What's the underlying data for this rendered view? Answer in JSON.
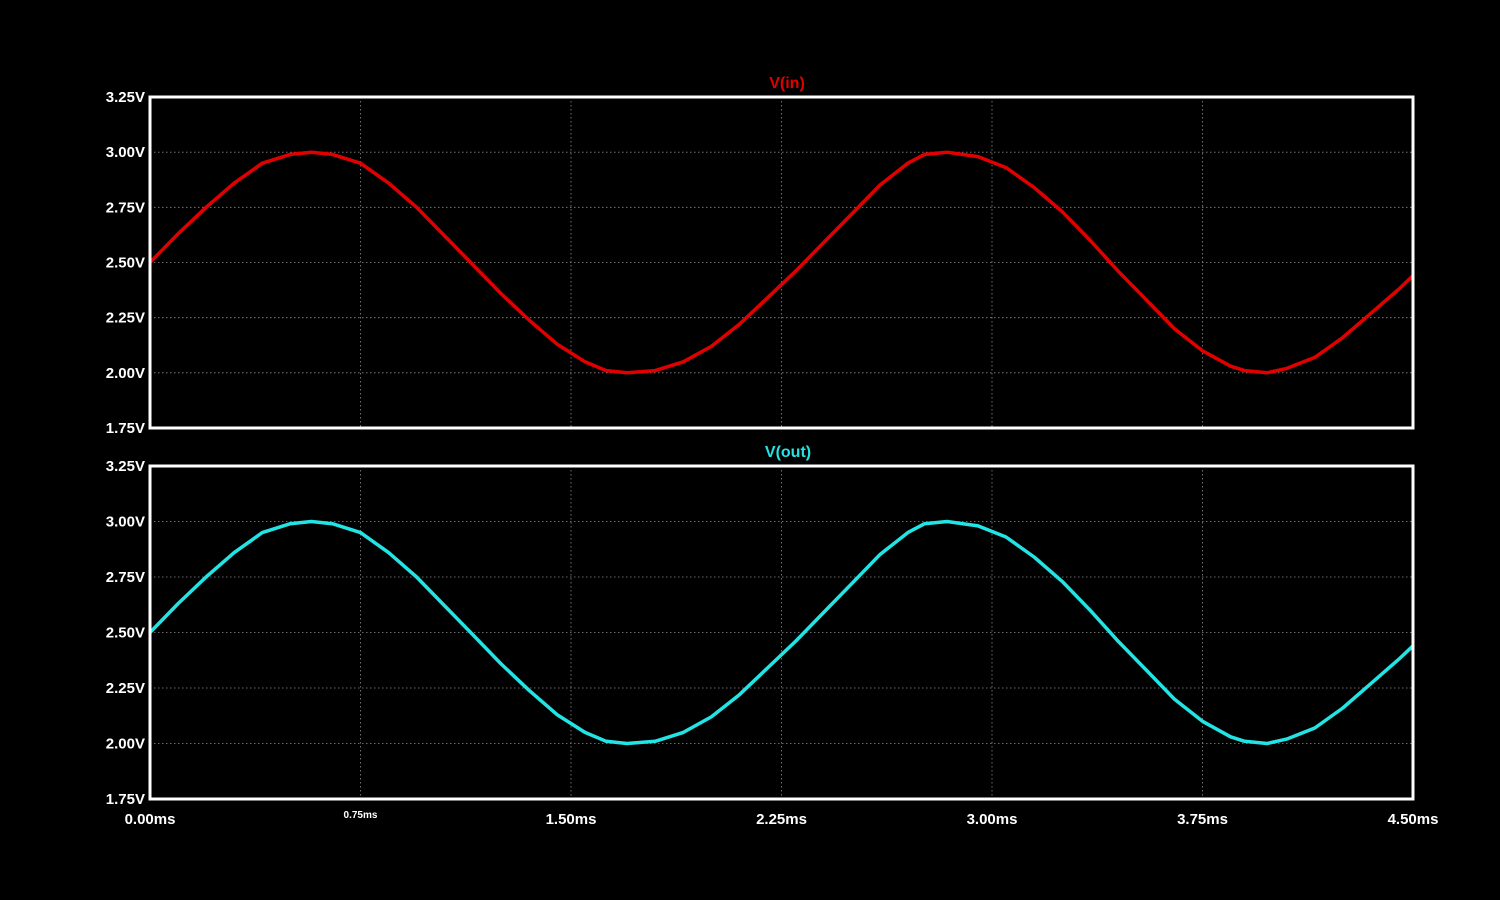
{
  "chart_data": {
    "type": "line",
    "x_unit": "ms",
    "x_ticks": [
      0.0,
      0.75,
      1.5,
      2.25,
      3.0,
      3.75,
      4.5
    ],
    "x_tick_labels": [
      "0.00ms",
      "0.75ms",
      "1.50ms",
      "2.25ms",
      "3.00ms",
      "3.75ms",
      "4.50ms"
    ],
    "xlim": [
      0,
      4.5
    ],
    "grid": true,
    "background": "#000000",
    "panels": [
      {
        "title": "V(in)",
        "color": "#e00000",
        "ylim": [
          1.75,
          3.25
        ],
        "y_ticks": [
          1.75,
          2.0,
          2.25,
          2.5,
          2.75,
          3.0,
          3.25
        ],
        "y_tick_labels": [
          "1.75V",
          "2.00V",
          "2.25V",
          "2.50V",
          "2.75V",
          "3.00V",
          "3.25V"
        ],
        "series": [
          {
            "name": "V(in)",
            "x": [
              0,
              0.1,
              0.2,
              0.3,
              0.4,
              0.5,
              0.575,
              0.65,
              0.75,
              0.85,
              0.95,
              1.05,
              1.15,
              1.25,
              1.35,
              1.45,
              1.55,
              1.625,
              1.7,
              1.8,
              1.9,
              2.0,
              2.1,
              2.2,
              2.3,
              2.4,
              2.5,
              2.6,
              2.7,
              2.76,
              2.84,
              2.95,
              3.05,
              3.15,
              3.25,
              3.35,
              3.45,
              3.55,
              3.65,
              3.75,
              3.85,
              3.9,
              3.98,
              4.05,
              4.15,
              4.25,
              4.35,
              4.45,
              4.5
            ],
            "y": [
              2.5,
              2.63,
              2.75,
              2.86,
              2.95,
              2.99,
              3.0,
              2.99,
              2.95,
              2.86,
              2.75,
              2.62,
              2.49,
              2.36,
              2.24,
              2.13,
              2.05,
              2.01,
              2.0,
              2.01,
              2.05,
              2.12,
              2.22,
              2.34,
              2.46,
              2.59,
              2.72,
              2.85,
              2.95,
              2.99,
              3.0,
              2.98,
              2.93,
              2.84,
              2.73,
              2.6,
              2.46,
              2.33,
              2.2,
              2.1,
              2.03,
              2.01,
              2.0,
              2.02,
              2.07,
              2.16,
              2.27,
              2.38,
              2.44
            ]
          }
        ]
      },
      {
        "title": "V(out)",
        "color": "#22e4e4",
        "ylim": [
          1.75,
          3.25
        ],
        "y_ticks": [
          1.75,
          2.0,
          2.25,
          2.5,
          2.75,
          3.0,
          3.25
        ],
        "y_tick_labels": [
          "1.75V",
          "2.00V",
          "2.25V",
          "2.50V",
          "2.75V",
          "3.00V",
          "3.25V"
        ],
        "series": [
          {
            "name": "V(out)",
            "x": [
              0,
              0.1,
              0.2,
              0.3,
              0.4,
              0.5,
              0.575,
              0.65,
              0.75,
              0.85,
              0.95,
              1.05,
              1.15,
              1.25,
              1.35,
              1.45,
              1.55,
              1.625,
              1.7,
              1.8,
              1.9,
              2.0,
              2.1,
              2.2,
              2.3,
              2.4,
              2.5,
              2.6,
              2.7,
              2.76,
              2.84,
              2.95,
              3.05,
              3.15,
              3.25,
              3.35,
              3.45,
              3.55,
              3.65,
              3.75,
              3.85,
              3.9,
              3.98,
              4.05,
              4.15,
              4.25,
              4.35,
              4.45,
              4.5
            ],
            "y": [
              2.5,
              2.63,
              2.75,
              2.86,
              2.95,
              2.99,
              3.0,
              2.99,
              2.95,
              2.86,
              2.75,
              2.62,
              2.49,
              2.36,
              2.24,
              2.13,
              2.05,
              2.01,
              2.0,
              2.01,
              2.05,
              2.12,
              2.22,
              2.34,
              2.46,
              2.59,
              2.72,
              2.85,
              2.95,
              2.99,
              3.0,
              2.98,
              2.93,
              2.84,
              2.73,
              2.6,
              2.46,
              2.33,
              2.2,
              2.1,
              2.03,
              2.01,
              2.0,
              2.02,
              2.07,
              2.16,
              2.27,
              2.38,
              2.44
            ]
          }
        ]
      }
    ]
  }
}
